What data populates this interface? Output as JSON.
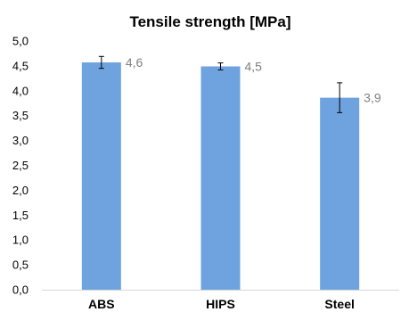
{
  "chart_data": {
    "type": "bar",
    "title": "Tensile strength [MPa]",
    "xlabel": "",
    "ylabel": "",
    "categories": [
      "ABS",
      "HIPS",
      "Steel"
    ],
    "series": [
      {
        "values": [
          4.57,
          4.49,
          3.86
        ],
        "error": [
          0.12,
          0.07,
          0.3
        ],
        "data_labels": [
          "4,6",
          "4,5",
          "3,9"
        ]
      }
    ],
    "ylim": [
      0,
      5
    ],
    "yticks": [
      0,
      0.5,
      1,
      1.5,
      2,
      2.5,
      3,
      3.5,
      4,
      4.5,
      5
    ],
    "ytick_labels": [
      "0,0",
      "0,5",
      "1,0",
      "1,5",
      "2,0",
      "2,5",
      "3,0",
      "3,5",
      "4,0",
      "4,5",
      "5,0"
    ],
    "grid": false,
    "legend": "none",
    "colors": {
      "bar": "#6fa3df",
      "axis": "#d9d9d9",
      "errorbar": "#000000",
      "data_label": "#7f7f7f",
      "text": "#000000"
    }
  }
}
